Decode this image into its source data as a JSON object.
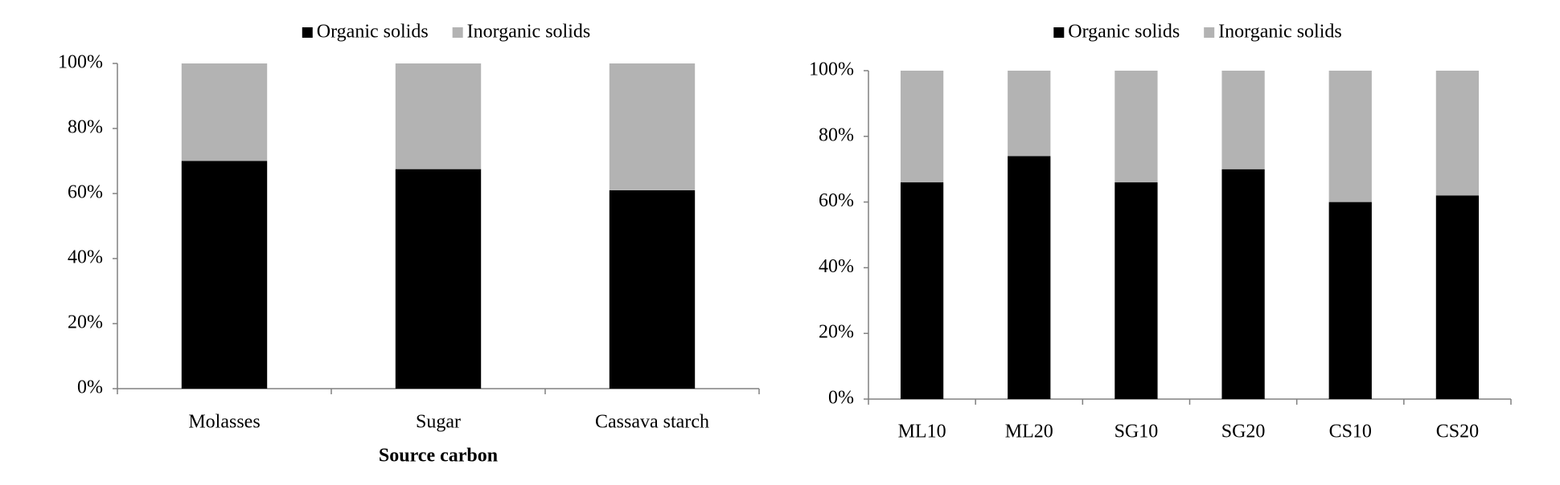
{
  "chart_data": [
    {
      "type": "bar",
      "stacked": true,
      "x_label": "Source carbon",
      "categories": [
        "Molasses",
        "Sugar",
        "Cassava starch"
      ],
      "series": [
        {
          "name": "Organic solids",
          "color": "#000000",
          "values": [
            70,
            67.5,
            61
          ]
        },
        {
          "name": "Inorganic solids",
          "color": "#b3b3b3",
          "values": [
            30,
            32.5,
            39
          ]
        }
      ],
      "ylim": [
        0,
        100
      ],
      "yticks": [
        {
          "value": 0,
          "label": "0%"
        },
        {
          "value": 20,
          "label": "20%"
        },
        {
          "value": 40,
          "label": "40%"
        },
        {
          "value": 60,
          "label": "60%"
        },
        {
          "value": 80,
          "label": "80%"
        },
        {
          "value": 100,
          "label": "100%"
        }
      ],
      "legend": "top"
    },
    {
      "type": "bar",
      "stacked": true,
      "categories": [
        "ML10",
        "ML20",
        "SG10",
        "SG20",
        "CS10",
        "CS20"
      ],
      "series": [
        {
          "name": "Organic solids",
          "color": "#000000",
          "values": [
            66,
            74,
            66,
            70,
            60,
            62
          ]
        },
        {
          "name": "Inorganic solids",
          "color": "#b3b3b3",
          "values": [
            34,
            26,
            34,
            30,
            40,
            38
          ]
        }
      ],
      "ylim": [
        0,
        100
      ],
      "yticks": [
        {
          "value": 0,
          "label": "0%"
        },
        {
          "value": 20,
          "label": "20%"
        },
        {
          "value": 40,
          "label": "40%"
        },
        {
          "value": 60,
          "label": "60%"
        },
        {
          "value": 80,
          "label": "80%"
        },
        {
          "value": 100,
          "label": "100%"
        }
      ],
      "legend": "top"
    }
  ]
}
